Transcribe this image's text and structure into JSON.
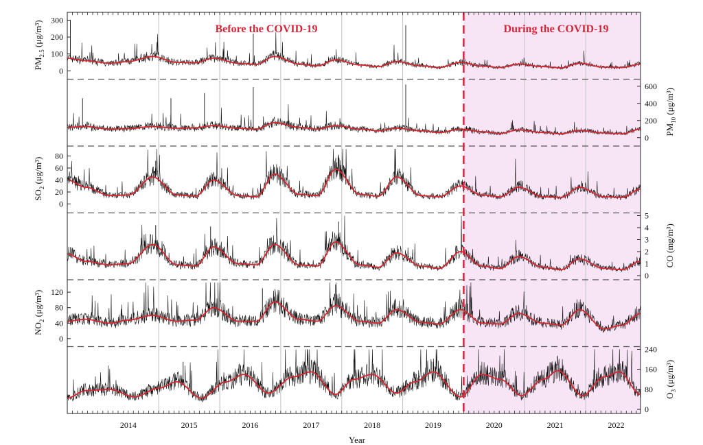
{
  "chart_data": {
    "type": "line",
    "x_label": "Year",
    "x_ticks": [
      "2014",
      "2015",
      "2016",
      "2017",
      "2018",
      "2019",
      "2020",
      "2021",
      "2022"
    ],
    "x_range": [
      2013.5,
      2022.9
    ],
    "annotations": {
      "before": "Before the COVID-19",
      "during": "During the COVID-19",
      "divider_year": 2020.0
    },
    "shading": {
      "from": 2020.0,
      "to": 2022.9,
      "color": "#f7e4f5"
    },
    "colors": {
      "raw": "#111111",
      "trend": "#d8262f",
      "divider": "#d62438"
    },
    "panels": [
      {
        "id": "pm25",
        "axis_side": "left",
        "ylabel_main": "PM",
        "ylabel_sub": "2.5",
        "ylabel_unit": " (μg/m³)",
        "ticks": [
          {
            "v": 0,
            "t": "0"
          },
          {
            "v": 100,
            "t": "100"
          },
          {
            "v": 200,
            "t": "200"
          },
          {
            "v": 300,
            "t": "300"
          }
        ],
        "ylim": [
          -25,
          330
        ],
        "trend": [
          [
            2013.5,
            75
          ],
          [
            2013.8,
            60
          ],
          [
            2014.2,
            45
          ],
          [
            2014.5,
            55
          ],
          [
            2014.9,
            85
          ],
          [
            2015.3,
            50
          ],
          [
            2015.6,
            48
          ],
          [
            2015.9,
            75
          ],
          [
            2016.3,
            45
          ],
          [
            2016.6,
            38
          ],
          [
            2016.9,
            85
          ],
          [
            2017.3,
            40
          ],
          [
            2017.6,
            30
          ],
          [
            2017.9,
            65
          ],
          [
            2018.3,
            35
          ],
          [
            2018.6,
            25
          ],
          [
            2018.9,
            55
          ],
          [
            2019.3,
            30
          ],
          [
            2019.6,
            20
          ],
          [
            2019.95,
            50
          ],
          [
            2020.3,
            28
          ],
          [
            2020.6,
            20
          ],
          [
            2020.9,
            40
          ],
          [
            2021.3,
            25
          ],
          [
            2021.6,
            18
          ],
          [
            2021.9,
            45
          ],
          [
            2022.3,
            22
          ],
          [
            2022.6,
            20
          ],
          [
            2022.9,
            40
          ]
        ],
        "spikes": [
          [
            2013.55,
            300
          ],
          [
            2016.55,
            220
          ],
          [
            2019.05,
            270
          ]
        ]
      },
      {
        "id": "pm10",
        "axis_side": "right",
        "ylabel_main": "PM",
        "ylabel_sub": "10",
        "ylabel_unit": " (μg/m³)",
        "ticks": [
          {
            "v": 0,
            "t": "0"
          },
          {
            "v": 200,
            "t": "200"
          },
          {
            "v": 400,
            "t": "400"
          },
          {
            "v": 600,
            "t": "600"
          }
        ],
        "ylim": [
          -50,
          650
        ],
        "trend": [
          [
            2013.5,
            120
          ],
          [
            2013.8,
            130
          ],
          [
            2014.2,
            100
          ],
          [
            2014.5,
            105
          ],
          [
            2014.9,
            130
          ],
          [
            2015.3,
            110
          ],
          [
            2015.6,
            115
          ],
          [
            2015.9,
            140
          ],
          [
            2016.3,
            110
          ],
          [
            2016.6,
            100
          ],
          [
            2016.9,
            175
          ],
          [
            2017.3,
            120
          ],
          [
            2017.6,
            100
          ],
          [
            2017.9,
            140
          ],
          [
            2018.3,
            100
          ],
          [
            2018.6,
            80
          ],
          [
            2018.9,
            110
          ],
          [
            2019.3,
            80
          ],
          [
            2019.6,
            60
          ],
          [
            2019.95,
            100
          ],
          [
            2020.3,
            70
          ],
          [
            2020.6,
            50
          ],
          [
            2020.9,
            90
          ],
          [
            2021.3,
            60
          ],
          [
            2021.6,
            45
          ],
          [
            2021.9,
            85
          ],
          [
            2022.3,
            55
          ],
          [
            2022.6,
            45
          ],
          [
            2022.9,
            100
          ]
        ],
        "spikes": [
          [
            2013.75,
            460
          ],
          [
            2015.2,
            460
          ],
          [
            2015.75,
            520
          ],
          [
            2016.55,
            590
          ],
          [
            2019.05,
            620
          ]
        ]
      },
      {
        "id": "so2",
        "axis_side": "left",
        "ylabel_main": "SO",
        "ylabel_sub": "2",
        "ylabel_unit": " (μg/m³)",
        "ticks": [
          {
            "v": 0,
            "t": "0"
          },
          {
            "v": 20,
            "t": "20"
          },
          {
            "v": 40,
            "t": "40"
          },
          {
            "v": 60,
            "t": "60"
          },
          {
            "v": 80,
            "t": "80"
          }
        ],
        "ylim": [
          -8,
          92
        ],
        "trend": [
          [
            2013.5,
            40
          ],
          [
            2013.8,
            28
          ],
          [
            2014.2,
            14
          ],
          [
            2014.5,
            15
          ],
          [
            2014.9,
            45
          ],
          [
            2015.3,
            15
          ],
          [
            2015.6,
            13
          ],
          [
            2015.9,
            40
          ],
          [
            2016.3,
            14
          ],
          [
            2016.6,
            12
          ],
          [
            2016.9,
            50
          ],
          [
            2017.3,
            16
          ],
          [
            2017.6,
            14
          ],
          [
            2017.9,
            58
          ],
          [
            2018.3,
            16
          ],
          [
            2018.6,
            13
          ],
          [
            2018.9,
            45
          ],
          [
            2019.3,
            14
          ],
          [
            2019.6,
            12
          ],
          [
            2019.95,
            30
          ],
          [
            2020.3,
            15
          ],
          [
            2020.6,
            12
          ],
          [
            2020.9,
            28
          ],
          [
            2021.3,
            12
          ],
          [
            2021.6,
            11
          ],
          [
            2021.9,
            28
          ],
          [
            2022.3,
            12
          ],
          [
            2022.6,
            11
          ],
          [
            2022.9,
            25
          ]
        ],
        "spikes": [
          [
            2014.95,
            72
          ],
          [
            2017.95,
            82
          ]
        ]
      },
      {
        "id": "co",
        "axis_side": "right",
        "ylabel_main": "CO",
        "ylabel_sub": "",
        "ylabel_unit": " (mg/m³)",
        "ticks": [
          {
            "v": 0,
            "t": "0"
          },
          {
            "v": 1,
            "t": "1"
          },
          {
            "v": 2,
            "t": "2"
          },
          {
            "v": 3,
            "t": "3"
          },
          {
            "v": 4,
            "t": "4"
          },
          {
            "v": 5,
            "t": "5"
          }
        ],
        "ylim": [
          0,
          5
        ],
        "trend": [
          [
            2013.5,
            1.8
          ],
          [
            2013.8,
            1.2
          ],
          [
            2014.2,
            0.9
          ],
          [
            2014.5,
            1.0
          ],
          [
            2014.9,
            2.6
          ],
          [
            2015.3,
            0.9
          ],
          [
            2015.6,
            0.8
          ],
          [
            2015.9,
            2.4
          ],
          [
            2016.3,
            1.0
          ],
          [
            2016.6,
            0.9
          ],
          [
            2016.9,
            2.6
          ],
          [
            2017.3,
            0.9
          ],
          [
            2017.6,
            0.8
          ],
          [
            2017.9,
            2.8
          ],
          [
            2018.3,
            0.9
          ],
          [
            2018.6,
            0.7
          ],
          [
            2018.9,
            1.9
          ],
          [
            2019.3,
            0.8
          ],
          [
            2019.6,
            0.6
          ],
          [
            2019.95,
            2.0
          ],
          [
            2020.3,
            0.8
          ],
          [
            2020.6,
            0.6
          ],
          [
            2020.9,
            1.6
          ],
          [
            2021.3,
            0.7
          ],
          [
            2021.6,
            0.5
          ],
          [
            2021.9,
            1.4
          ],
          [
            2022.3,
            0.6
          ],
          [
            2022.6,
            0.5
          ],
          [
            2022.9,
            1.2
          ]
        ],
        "spikes": [
          [
            2014.95,
            4.2
          ],
          [
            2015.85,
            4.1
          ],
          [
            2017.95,
            4.5
          ]
        ]
      },
      {
        "id": "no2",
        "axis_side": "left",
        "ylabel_main": "NO",
        "ylabel_sub": "2",
        "ylabel_unit": " (μg/m³)",
        "ticks": [
          {
            "v": 0,
            "t": "0"
          },
          {
            "v": 40,
            "t": "40"
          },
          {
            "v": 80,
            "t": "80"
          },
          {
            "v": 120,
            "t": "120"
          }
        ],
        "ylim": [
          -10,
          145
        ],
        "trend": [
          [
            2013.5,
            45
          ],
          [
            2013.8,
            50
          ],
          [
            2014.2,
            40
          ],
          [
            2014.5,
            48
          ],
          [
            2014.9,
            60
          ],
          [
            2015.3,
            45
          ],
          [
            2015.6,
            48
          ],
          [
            2015.9,
            80
          ],
          [
            2016.3,
            45
          ],
          [
            2016.6,
            45
          ],
          [
            2016.9,
            95
          ],
          [
            2017.3,
            50
          ],
          [
            2017.6,
            45
          ],
          [
            2017.9,
            85
          ],
          [
            2018.3,
            45
          ],
          [
            2018.6,
            40
          ],
          [
            2018.9,
            75
          ],
          [
            2019.3,
            42
          ],
          [
            2019.6,
            38
          ],
          [
            2019.95,
            75
          ],
          [
            2020.3,
            40
          ],
          [
            2020.6,
            38
          ],
          [
            2020.9,
            65
          ],
          [
            2021.3,
            40
          ],
          [
            2021.6,
            35
          ],
          [
            2021.9,
            75
          ],
          [
            2022.3,
            25
          ],
          [
            2022.6,
            35
          ],
          [
            2022.9,
            65
          ]
        ],
        "spikes": [
          [
            2016.7,
            130
          ],
          [
            2017.9,
            140
          ]
        ]
      },
      {
        "id": "o3",
        "axis_side": "right",
        "ylabel_main": "O",
        "ylabel_sub": "3",
        "ylabel_unit": " (μg/m³)",
        "ticks": [
          {
            "v": 0,
            "t": "0"
          },
          {
            "v": 80,
            "t": "80"
          },
          {
            "v": 160,
            "t": "160"
          },
          {
            "v": 240,
            "t": "240"
          }
        ],
        "ylim": [
          0,
          240
        ],
        "trend": [
          [
            2013.5,
            45
          ],
          [
            2013.8,
            75
          ],
          [
            2014.2,
            80
          ],
          [
            2014.6,
            50
          ],
          [
            2015.0,
            85
          ],
          [
            2015.3,
            110
          ],
          [
            2015.7,
            45
          ],
          [
            2016.1,
            110
          ],
          [
            2016.4,
            140
          ],
          [
            2016.8,
            65
          ],
          [
            2017.2,
            130
          ],
          [
            2017.5,
            150
          ],
          [
            2017.9,
            60
          ],
          [
            2018.2,
            120
          ],
          [
            2018.5,
            140
          ],
          [
            2018.9,
            65
          ],
          [
            2019.2,
            110
          ],
          [
            2019.5,
            150
          ],
          [
            2019.95,
            50
          ],
          [
            2020.3,
            140
          ],
          [
            2020.6,
            120
          ],
          [
            2020.95,
            55
          ],
          [
            2021.3,
            120
          ],
          [
            2021.55,
            155
          ],
          [
            2021.95,
            55
          ],
          [
            2022.3,
            130
          ],
          [
            2022.55,
            150
          ],
          [
            2022.9,
            60
          ]
        ],
        "spikes": [
          [
            2015.4,
            190
          ],
          [
            2018.2,
            200
          ],
          [
            2019.5,
            190
          ]
        ]
      }
    ]
  }
}
